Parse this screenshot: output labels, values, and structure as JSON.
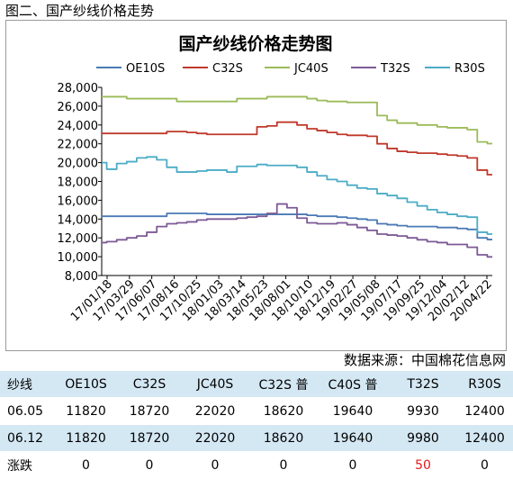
{
  "caption": "图二、国产纱线价格走势",
  "source": "数据来源：中国棉花信息网",
  "chart_data": {
    "type": "line",
    "title": "国产纱线价格走势图",
    "legend_position": "top",
    "ylim": [
      8000,
      28000
    ],
    "yticks": [
      "28,000",
      "26,000",
      "24,000",
      "22,000",
      "20,000",
      "18,000",
      "16,000",
      "14,000",
      "12,000",
      "10,000",
      "8,000"
    ],
    "ytick_values": [
      28000,
      26000,
      24000,
      22000,
      20000,
      18000,
      16000,
      14000,
      12000,
      10000,
      8000
    ],
    "xtick_labels": [
      "17/01/18",
      "17/03/29",
      "17/06/07",
      "17/08/16",
      "17/10/25",
      "18/01/03",
      "18/03/14",
      "18/05/23",
      "18/08/01",
      "18/10/10",
      "18/12/19",
      "19/02/27",
      "19/05/08",
      "19/07/17",
      "19/09/25",
      "19/12/04",
      "20/02/12",
      "20/04/22"
    ],
    "x_points": 40,
    "grid": false,
    "series": [
      {
        "name": "OE10S",
        "color": "#4a7ab5",
        "values": [
          14300,
          14300,
          14300,
          14300,
          14300,
          14300,
          14300,
          14600,
          14600,
          14600,
          14600,
          14500,
          14500,
          14500,
          14500,
          14500,
          14500,
          14500,
          14500,
          14500,
          14500,
          14400,
          14300,
          14300,
          14200,
          14100,
          14000,
          13900,
          13500,
          13400,
          13300,
          13200,
          13200,
          13200,
          13100,
          13100,
          13000,
          12900,
          12000,
          11820
        ]
      },
      {
        "name": "C32S",
        "color": "#c0392b",
        "values": [
          23100,
          23100,
          23100,
          23100,
          23100,
          23100,
          23100,
          23300,
          23300,
          23200,
          23100,
          23000,
          23000,
          23000,
          23000,
          23000,
          23800,
          23900,
          24300,
          24300,
          24000,
          23600,
          23400,
          23200,
          23000,
          22900,
          22900,
          22800,
          22000,
          21500,
          21200,
          21100,
          21000,
          21000,
          20900,
          20800,
          20700,
          20500,
          19200,
          18720
        ]
      },
      {
        "name": "JC40S",
        "color": "#9bbb59",
        "values": [
          27000,
          27000,
          27000,
          26800,
          26800,
          26800,
          26800,
          26800,
          26500,
          26500,
          26500,
          26500,
          26500,
          26500,
          26800,
          26800,
          26800,
          27000,
          27000,
          27000,
          27000,
          26800,
          26600,
          26500,
          26500,
          26400,
          26400,
          26400,
          25000,
          24500,
          24200,
          24200,
          24000,
          24000,
          23800,
          23700,
          23700,
          23500,
          22200,
          22020
        ]
      },
      {
        "name": "T32S",
        "color": "#7d5a96",
        "values": [
          11500,
          11600,
          11800,
          12000,
          12200,
          12600,
          13200,
          13500,
          13600,
          13700,
          13900,
          14000,
          14000,
          14000,
          14100,
          14200,
          14300,
          14600,
          15600,
          15200,
          14100,
          13600,
          13500,
          13500,
          13600,
          13400,
          13100,
          12800,
          12400,
          12300,
          12200,
          12000,
          11800,
          11600,
          11500,
          11300,
          11300,
          11000,
          10200,
          9980
        ]
      },
      {
        "name": "R30S",
        "color": "#4bacc6",
        "values": [
          20000,
          19300,
          19900,
          20100,
          20500,
          20600,
          20300,
          19500,
          19000,
          19000,
          19100,
          19200,
          19200,
          19000,
          19600,
          19600,
          19800,
          19700,
          19700,
          19700,
          19500,
          19000,
          18600,
          18200,
          18000,
          17600,
          17300,
          17200,
          16700,
          16500,
          16200,
          15800,
          15400,
          15000,
          14700,
          14500,
          14300,
          14200,
          12600,
          12400
        ]
      }
    ]
  },
  "table": {
    "headers": [
      "纱线",
      "OE10S",
      "C32S",
      "JC40S",
      "C32S 普",
      "C40S 普",
      "T32S",
      "R30S"
    ],
    "rows": [
      [
        "06.05",
        "11820",
        "18720",
        "22020",
        "18620",
        "19640",
        "9930",
        "12400"
      ],
      [
        "06.12",
        "11820",
        "18720",
        "22020",
        "18620",
        "19640",
        "9980",
        "12400"
      ],
      [
        "涨跌",
        "0",
        "0",
        "0",
        "0",
        "0",
        "50",
        "0"
      ]
    ],
    "highlight_color": "#e31a1a"
  }
}
